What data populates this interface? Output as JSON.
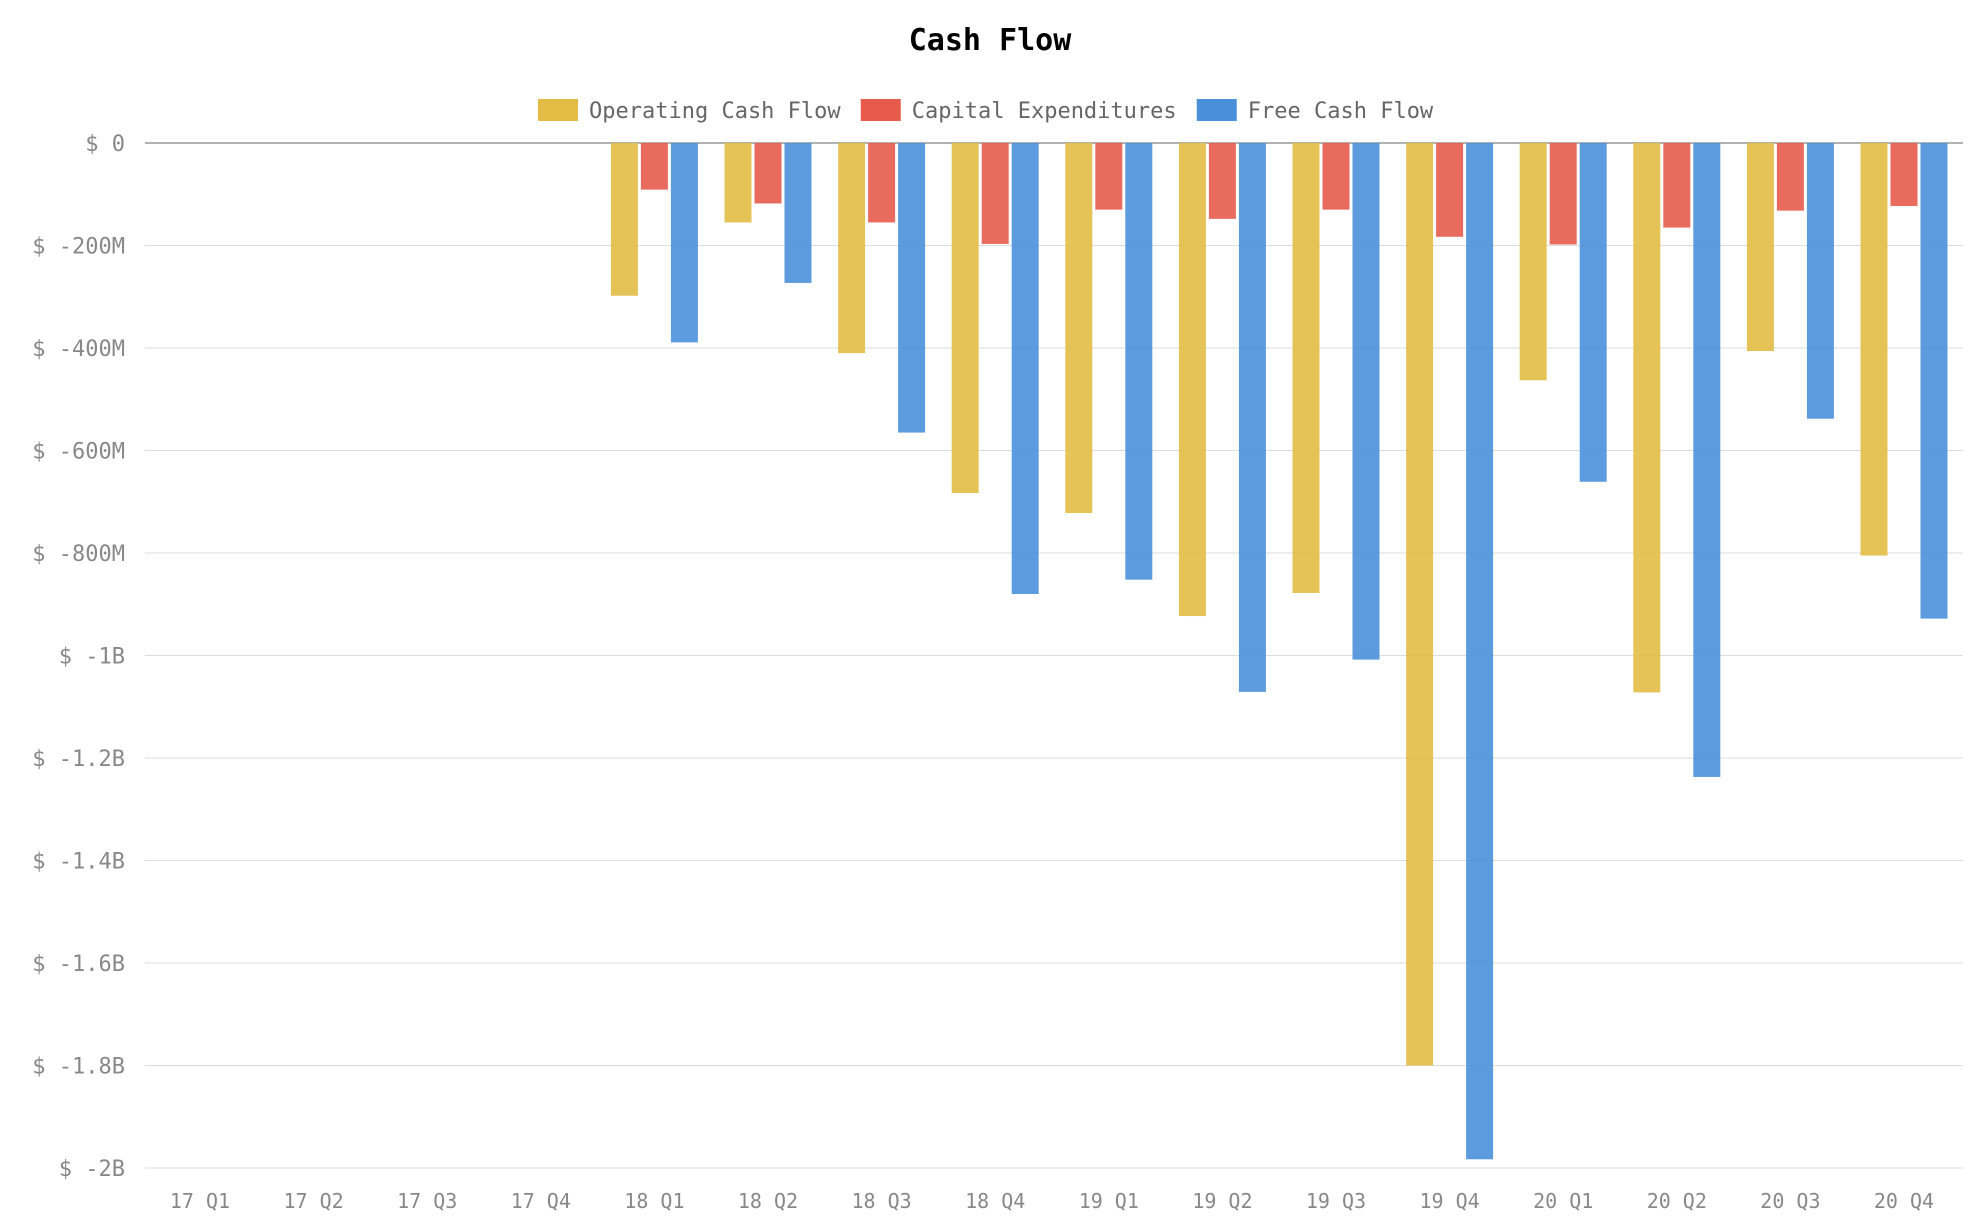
{
  "chart_data": {
    "type": "bar",
    "title": "Cash Flow",
    "xlabel": "",
    "ylabel": "",
    "grid": true,
    "legend_position": "top-center",
    "categories": [
      "17 Q1",
      "17 Q2",
      "17 Q3",
      "17 Q4",
      "18 Q1",
      "18 Q2",
      "18 Q3",
      "18 Q4",
      "19 Q1",
      "19 Q2",
      "19 Q3",
      "19 Q4",
      "20 Q1",
      "20 Q2",
      "20 Q3",
      "20 Q4"
    ],
    "ylim": [
      -2000,
      0
    ],
    "yunit": "millions USD",
    "yticks": [
      {
        "value": 0,
        "label": "$ 0"
      },
      {
        "value": -200,
        "label": "$ -200M"
      },
      {
        "value": -400,
        "label": "$ -400M"
      },
      {
        "value": -600,
        "label": "$ -600M"
      },
      {
        "value": -800,
        "label": "$ -800M"
      },
      {
        "value": -1000,
        "label": "$ -1B"
      },
      {
        "value": -1200,
        "label": "$ -1.2B"
      },
      {
        "value": -1400,
        "label": "$ -1.4B"
      },
      {
        "value": -1600,
        "label": "$ -1.6B"
      },
      {
        "value": -1800,
        "label": "$ -1.8B"
      },
      {
        "value": -2000,
        "label": "$ -2B"
      }
    ],
    "series": [
      {
        "name": "Operating Cash Flow",
        "color": "#E2BC45",
        "values": [
          null,
          null,
          null,
          null,
          -298,
          -155,
          -410,
          -683,
          -722,
          -923,
          -878,
          -1800,
          -463,
          -1072,
          -406,
          -805
        ]
      },
      {
        "name": "Capital Expenditures",
        "color": "#E75B4D",
        "values": [
          null,
          null,
          null,
          null,
          -91,
          -118,
          -155,
          -197,
          -130,
          -148,
          -130,
          -183,
          -198,
          -165,
          -132,
          -123
        ]
      },
      {
        "name": "Free Cash Flow",
        "color": "#4A90D9",
        "values": [
          null,
          null,
          null,
          null,
          -389,
          -273,
          -565,
          -880,
          -852,
          -1071,
          -1008,
          -1983,
          -661,
          -1237,
          -538,
          -928
        ]
      }
    ]
  }
}
